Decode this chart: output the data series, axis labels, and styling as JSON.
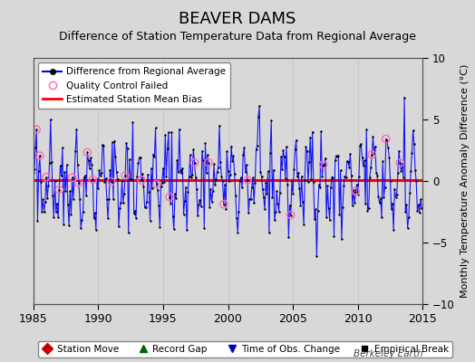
{
  "title": "BEAVER DAMS",
  "subtitle": "Difference of Station Temperature Data from Regional Average",
  "ylabel": "Monthly Temperature Anomaly Difference (°C)",
  "xlim": [
    1985,
    2015
  ],
  "ylim": [
    -10,
    10
  ],
  "xticks": [
    1985,
    1990,
    1995,
    2000,
    2005,
    2010,
    2015
  ],
  "yticks": [
    -10,
    -5,
    0,
    5,
    10
  ],
  "bias_value": 0.1,
  "background_color": "#d8d8d8",
  "plot_bg_color": "#d8d8d8",
  "line_color": "#0000ff",
  "dot_color": "#000000",
  "bias_color": "#ff0000",
  "qc_color": "#ff69b4",
  "title_fontsize": 13,
  "subtitle_fontsize": 9,
  "watermark": "Berkeley Earth",
  "seed": 42,
  "n_years": 30,
  "annual_amplitude": 2.2,
  "noise_scale": 1.3,
  "qc_failed_indices": [
    3,
    6,
    12,
    24,
    36,
    42,
    50,
    55,
    72,
    85,
    100,
    114,
    126,
    149,
    162,
    176,
    198,
    238,
    268,
    298,
    313,
    326,
    339
  ],
  "spike_indices": [
    16,
    40,
    92,
    128,
    172,
    208,
    258,
    308,
    343
  ],
  "spike_values": [
    5.0,
    4.2,
    4.8,
    4.0,
    4.5,
    5.2,
    4.0,
    4.2,
    6.8
  ],
  "neg_spike_indices": [
    4,
    28,
    58,
    88,
    108,
    158,
    218,
    278,
    333
  ],
  "neg_spike_values": [
    -3.2,
    -3.5,
    -4.0,
    -4.2,
    -3.2,
    -3.8,
    -4.2,
    -4.5,
    -4.0
  ]
}
